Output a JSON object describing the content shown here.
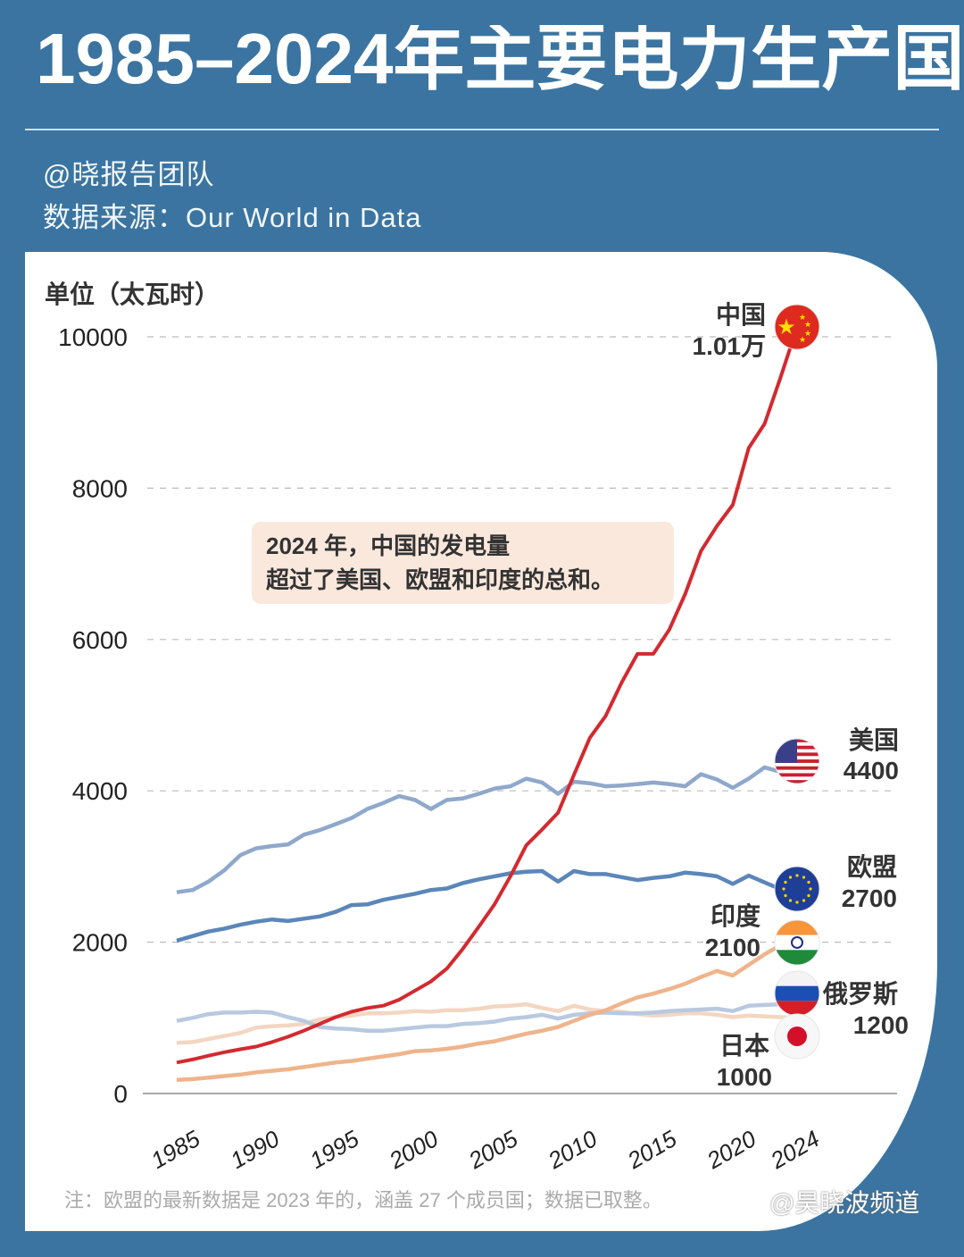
{
  "header": {
    "title": "1985–2024年主要电力生产国",
    "author": "@晓报告团队",
    "source": "数据来源：Our World in Data"
  },
  "annotation": {
    "line1": "2024 年，中国的发电量",
    "line2": "超过了美国、欧盟和印度的总和。"
  },
  "footnote": "注：欧盟的最新数据是 2023 年的，涵盖 27 个成员国；数据已取整。",
  "watermark": "@昊晓波频道",
  "chart_data": {
    "type": "line",
    "ylabel": "单位（太瓦时）",
    "ylim": [
      0,
      10000
    ],
    "yticks": [
      "0",
      "2000",
      "4000",
      "6000",
      "8000",
      "10000"
    ],
    "xticks": [
      "1985",
      "1990",
      "1995",
      "2000",
      "2005",
      "2010",
      "2015",
      "2020",
      "2024"
    ],
    "grid": "horizontal dashed",
    "x_start": 1985,
    "series": [
      {
        "name": "中国",
        "end_label": "1.01万",
        "color": "#d22a30",
        "flag": "china-flag",
        "values": [
          410,
          450,
          500,
          545,
          585,
          620,
          680,
          750,
          830,
          920,
          1010,
          1080,
          1130,
          1160,
          1240,
          1360,
          1480,
          1650,
          1910,
          2200,
          2500,
          2870,
          3280,
          3490,
          3710,
          4210,
          4700,
          4990,
          5430,
          5810,
          5810,
          6130,
          6600,
          7170,
          7500,
          7780,
          8530,
          8850,
          9460,
          10100
        ]
      },
      {
        "name": "美国",
        "end_label": "4400",
        "color": "#8fa8cb",
        "flag": "usa-flag",
        "values": [
          2660,
          2690,
          2800,
          2950,
          3150,
          3240,
          3270,
          3290,
          3420,
          3480,
          3560,
          3640,
          3760,
          3840,
          3930,
          3880,
          3760,
          3880,
          3900,
          3960,
          4030,
          4060,
          4160,
          4110,
          3960,
          4120,
          4100,
          4060,
          4070,
          4090,
          4110,
          4090,
          4060,
          4220,
          4150,
          4040,
          4160,
          4310,
          4250,
          4400
        ]
      },
      {
        "name": "欧盟",
        "end_label": "2700",
        "color": "#5b86b9",
        "flag": "eu-flag",
        "values": [
          2020,
          2080,
          2140,
          2180,
          2230,
          2270,
          2300,
          2280,
          2310,
          2340,
          2400,
          2490,
          2500,
          2560,
          2600,
          2640,
          2690,
          2710,
          2780,
          2830,
          2870,
          2910,
          2930,
          2940,
          2800,
          2940,
          2900,
          2900,
          2860,
          2820,
          2850,
          2870,
          2920,
          2900,
          2870,
          2770,
          2880,
          2790,
          2700
        ]
      },
      {
        "name": "印度",
        "end_label": "2100",
        "color": "#efb48b",
        "flag": "india-flag",
        "values": [
          180,
          190,
          210,
          230,
          250,
          280,
          300,
          320,
          350,
          380,
          410,
          430,
          460,
          490,
          520,
          560,
          570,
          590,
          620,
          660,
          690,
          740,
          790,
          830,
          880,
          960,
          1040,
          1100,
          1190,
          1270,
          1320,
          1380,
          1450,
          1540,
          1620,
          1560,
          1700,
          1840,
          1960,
          2100
        ]
      },
      {
        "name": "俄罗斯",
        "end_label": "1200",
        "color": "#b8c9e0",
        "flag": "russia-flag",
        "values": [
          960,
          1000,
          1050,
          1070,
          1070,
          1080,
          1070,
          1010,
          960,
          880,
          860,
          850,
          830,
          830,
          850,
          870,
          890,
          890,
          920,
          930,
          950,
          990,
          1010,
          1040,
          990,
          1040,
          1060,
          1070,
          1060,
          1060,
          1070,
          1090,
          1100,
          1110,
          1120,
          1090,
          1160,
          1170,
          1180,
          1200
        ]
      },
      {
        "name": "日本",
        "end_label": "1000",
        "color": "#f3d6c2",
        "flag": "japan-flag",
        "values": [
          670,
          680,
          720,
          760,
          800,
          870,
          890,
          900,
          920,
          980,
          1010,
          1030,
          1060,
          1060,
          1070,
          1090,
          1080,
          1100,
          1100,
          1120,
          1150,
          1160,
          1180,
          1130,
          1090,
          1160,
          1110,
          1090,
          1080,
          1050,
          1030,
          1040,
          1060,
          1060,
          1040,
          1010,
          1030,
          1020,
          1010,
          1000
        ]
      }
    ]
  }
}
